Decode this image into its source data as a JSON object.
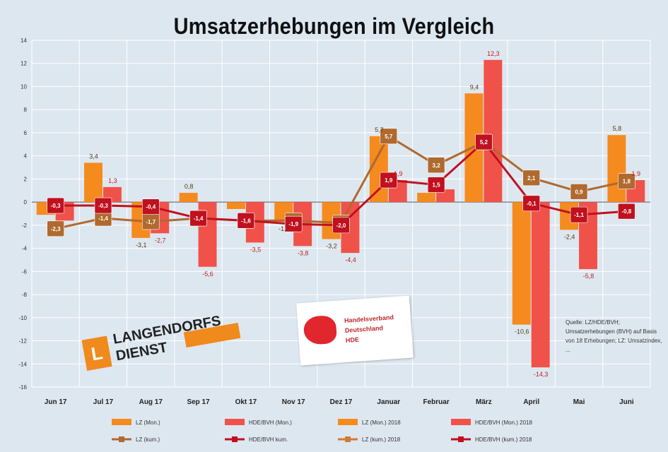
{
  "chart_data": {
    "type": "bar",
    "title": "Umsatzerhebungen im Vergleich",
    "categories": [
      "Jun 17",
      "Jul 17",
      "Aug 17",
      "Sep 17",
      "Okt 17",
      "Nov 17",
      "Dez 17",
      "Januar",
      "Februar",
      "März",
      "April",
      "Mai",
      "Juni"
    ],
    "ylim": [
      -16,
      14
    ],
    "yticks": [
      14,
      12,
      10,
      8,
      6,
      4,
      2,
      0,
      -2,
      -4,
      -6,
      -8,
      -10,
      -12,
      -14,
      -16
    ],
    "grid": true,
    "bar_series": [
      {
        "name": "LZ (Mon.)",
        "color": "#f58a1f",
        "values": [
          -1.1,
          3.4,
          -3.1,
          0.8,
          -0.6,
          -1.7,
          -3.2,
          5.7,
          0.8,
          9.4,
          -10.6,
          -2.4,
          5.8
        ]
      },
      {
        "name": "HDE/BVH (Mon.)",
        "color": "#f0524a",
        "values": [
          -1.6,
          1.3,
          -2.7,
          -5.6,
          -3.5,
          -3.8,
          -4.4,
          1.9,
          1.1,
          12.3,
          -14.3,
          -5.8,
          1.9
        ]
      }
    ],
    "line_series": [
      {
        "name": "LZ (kum.)",
        "color": "#b0692e",
        "values": [
          -2.3,
          -1.4,
          -1.7,
          -1.4,
          -1.6,
          -1.6,
          -1.8,
          5.7,
          3.2,
          5.2,
          2.1,
          0.9,
          1.8
        ]
      },
      {
        "name": "HDE/BVH kum.",
        "color": "#c0111f",
        "values": [
          -0.3,
          -0.3,
          -0.4,
          -1.4,
          -1.6,
          -1.9,
          -2.0,
          1.9,
          1.5,
          5.2,
          -0.1,
          -1.1,
          -0.8
        ]
      }
    ],
    "bar_labels": {
      "series0": [
        "",
        "3,4",
        "-3,1",
        "0,8",
        "",
        "-1,7",
        "-3,2",
        "5,7",
        "",
        "9,4",
        "-10,6",
        "-2,4",
        "5,8"
      ],
      "series1": [
        "",
        "1,3",
        "-2,7",
        "-5,6",
        "-3,5",
        "-3,8",
        "-4,4",
        "1,9",
        "",
        "12,3",
        "-14,3",
        "-5,8",
        "1,9"
      ]
    },
    "line_labels": {
      "series0": [
        "-2,3",
        "-1,4",
        "-1,7",
        "-1,4",
        "-1,6",
        "-1,6",
        "-1,8",
        "5,7",
        "3,2",
        "5,2",
        "2,1",
        "0,9",
        "1,8"
      ],
      "series1": [
        "-0,3",
        "-0,3",
        "-0,4",
        "-1,4",
        "-1,6",
        "-1,9",
        "-2,0",
        "1,9",
        "1,5",
        "5,2",
        "-0,1",
        "-1,1",
        "-0,8"
      ]
    },
    "legend": [
      {
        "label": "LZ (Mon.)",
        "kind": "bar",
        "color": "#f58a1f"
      },
      {
        "label": "HDE/BVH (Mon.)",
        "kind": "bar",
        "color": "#f0524a"
      },
      {
        "label": "LZ (Mon.) 2018",
        "kind": "bar",
        "color": "#f58a1f"
      },
      {
        "label": "HDE/BVH (Mon.) 2018",
        "kind": "bar",
        "color": "#f0524a"
      },
      {
        "label": "LZ (kum.)",
        "kind": "line",
        "color": "#b0692e"
      },
      {
        "label": "HDE/BVH kum.",
        "kind": "line",
        "color": "#c0111f"
      },
      {
        "label": "LZ (kum.) 2018",
        "kind": "line",
        "color": "#d07a36"
      },
      {
        "label": "HDE/BVH (kum.) 2018",
        "kind": "line",
        "color": "#c0111f"
      }
    ],
    "legend_position": "bottom"
  },
  "logos": {
    "langendorfs_mark": "L",
    "langendorfs_line1": "LANGENDORFS",
    "langendorfs_line2": "DIENST",
    "hde_line1": "Handelsverband",
    "hde_line2": "Deutschland",
    "hde_line3": "HDE"
  },
  "source_note": "Quelle: LZ/HDE/BVH; Umsatzerhebungen (BVH) auf Basis von 18 Erhebungen; LZ: Umsatzindex, ...",
  "colors": {
    "background": "#dde7f0",
    "grid": "#ffffff"
  }
}
